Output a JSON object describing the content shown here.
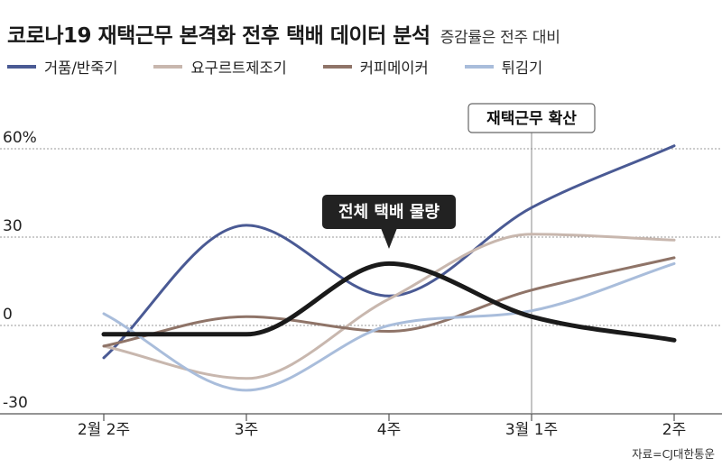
{
  "header": {
    "title": "코로나19 재택근무 본격화 전후 택배 데이터 분석",
    "subtitle": "증감률은 전주 대비"
  },
  "source": "자료=CJ대한통운",
  "colors": {
    "grid": "#9a9a9a",
    "axis": "#555555",
    "label_bg": "#222222",
    "label_fg": "#ffffff"
  },
  "chart_data": {
    "type": "line",
    "categories": [
      "2월 2주",
      "3주",
      "4주",
      "3월 1주",
      "2주"
    ],
    "y_ticks": [
      {
        "value": 60,
        "label": "60%"
      },
      {
        "value": 30,
        "label": "30"
      },
      {
        "value": 0,
        "label": "0"
      },
      {
        "value": -30,
        "label": "-30"
      }
    ],
    "ylim": [
      -30,
      60
    ],
    "series": [
      {
        "key": "diaper",
        "name": "거품/반죽기",
        "color": "#4a5a94",
        "width": 3,
        "values": [
          -11,
          34,
          10,
          40,
          61
        ]
      },
      {
        "key": "yogurt",
        "name": "요구르트제조기",
        "color": "#c8b7ae",
        "width": 3,
        "values": [
          -7,
          -18,
          9,
          31,
          29
        ]
      },
      {
        "key": "coffee",
        "name": "커피메이커",
        "color": "#8f7468",
        "width": 3,
        "values": [
          -7,
          3,
          -2,
          12,
          23
        ]
      },
      {
        "key": "fryer",
        "name": "튀김기",
        "color": "#a9bddb",
        "width": 3,
        "values": [
          4,
          -22,
          0,
          5,
          21
        ]
      },
      {
        "key": "total",
        "name": "전체 택배 물량",
        "color": "#1a1a1a",
        "width": 5,
        "values": [
          -3,
          -3,
          21,
          3,
          -5
        ]
      }
    ],
    "annotations": {
      "callout_total": "전체 택배 물량",
      "event_label": "재택근무 확산"
    }
  }
}
